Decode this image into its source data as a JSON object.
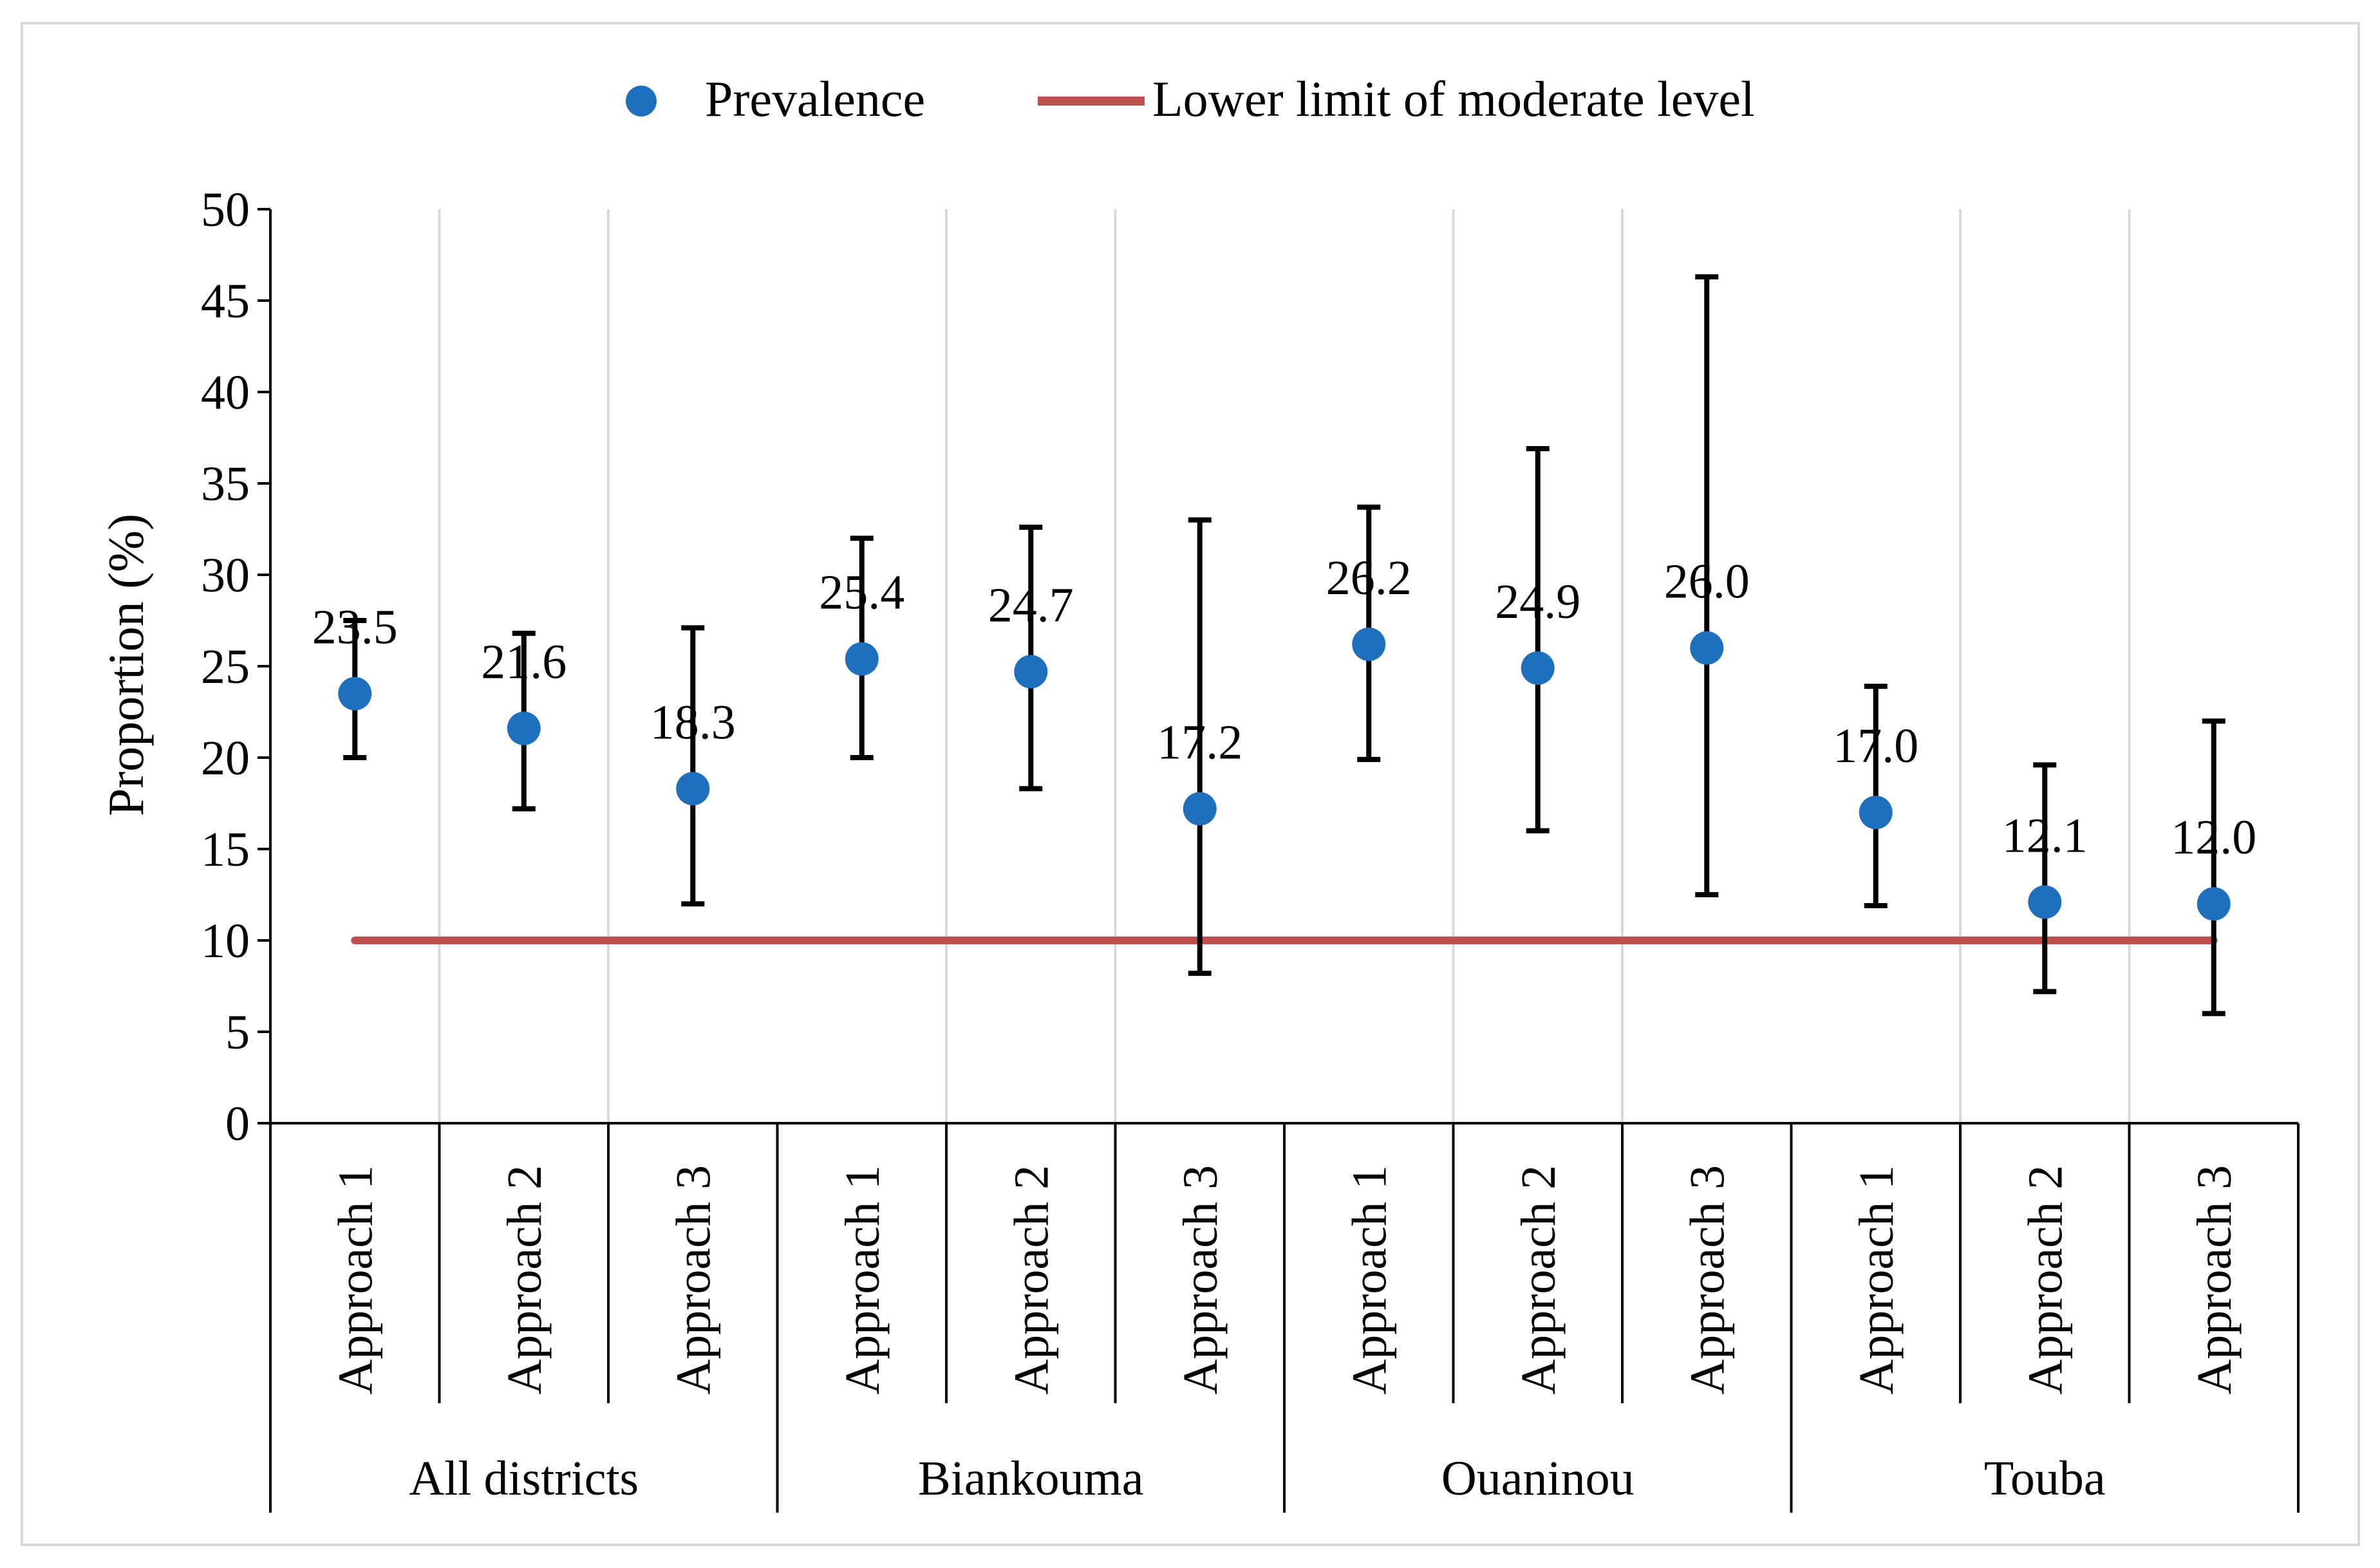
{
  "chart_data": {
    "type": "scatter",
    "title": "",
    "xlabel": "",
    "ylabel": "Proportion  (%)",
    "ylim": [
      0,
      50
    ],
    "yticks": [
      0,
      5,
      10,
      15,
      20,
      25,
      30,
      35,
      40,
      45,
      50
    ],
    "grid": "vertical",
    "legend_position": "top-center",
    "groups": [
      {
        "name": "All districts",
        "categories": [
          "Approach 1",
          "Approach 2",
          "Approach 3"
        ]
      },
      {
        "name": "Biankouma",
        "categories": [
          "Approach 1",
          "Approach 2",
          "Approach 3"
        ]
      },
      {
        "name": "Ouaninou",
        "categories": [
          "Approach 1",
          "Approach 2",
          "Approach 3"
        ]
      },
      {
        "name": "Touba",
        "categories": [
          "Approach 1",
          "Approach 2",
          "Approach 3"
        ]
      }
    ],
    "series": [
      {
        "name": "Prevalence",
        "kind": "points-with-error-bars",
        "color": "#1f6fbf",
        "values": [
          23.5,
          21.6,
          18.3,
          25.4,
          24.7,
          17.2,
          26.2,
          24.9,
          26.0,
          17.0,
          12.1,
          12.0
        ],
        "labels": [
          "23.5",
          "21.6",
          "18.3",
          "25.4",
          "24.7",
          "17.2",
          "26.2",
          "24.9",
          "26.0",
          "17.0",
          "12.1",
          "12.0"
        ],
        "lower": [
          20.0,
          17.2,
          12.0,
          20.0,
          18.3,
          8.2,
          19.9,
          16.0,
          12.5,
          11.9,
          7.2,
          6.0
        ],
        "upper": [
          27.5,
          26.8,
          27.1,
          32.0,
          32.6,
          33.0,
          33.7,
          36.9,
          46.3,
          23.9,
          19.6,
          22.0
        ]
      },
      {
        "name": "Lower limit of moderate level",
        "kind": "line",
        "color": "#c0504d",
        "values": [
          10,
          10,
          10,
          10,
          10,
          10,
          10,
          10,
          10,
          10,
          10,
          10
        ]
      }
    ]
  }
}
